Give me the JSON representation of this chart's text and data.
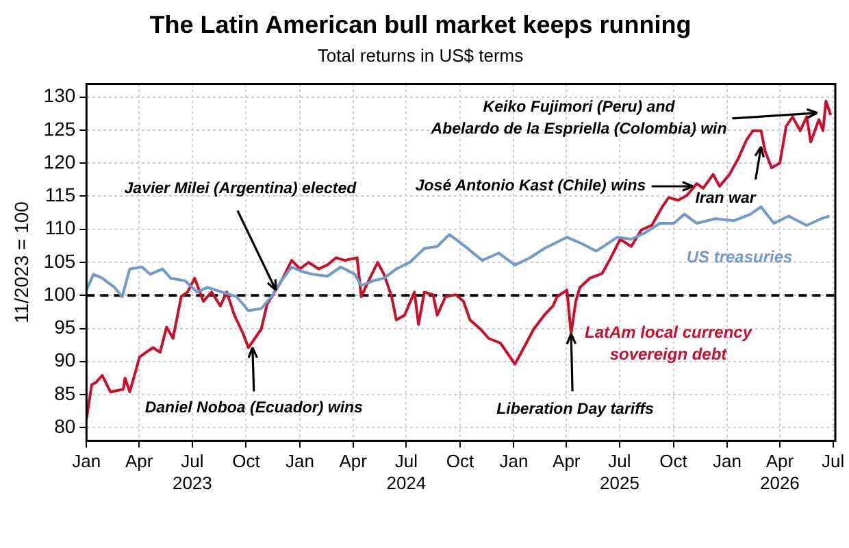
{
  "chart_data": {
    "type": "line",
    "title": "The Latin American bull market keeps running",
    "subtitle": "Total returns in US$ terms",
    "ylabel": "11/2023 = 100",
    "xlim": [
      "2023-01-01",
      "2026-07-05"
    ],
    "xticks": [
      {
        "value": "2023-01",
        "label": "Jan"
      },
      {
        "value": "2023-04",
        "label": "Apr"
      },
      {
        "value": "2023-07",
        "label": "Jul\n2023"
      },
      {
        "value": "2023-10",
        "label": "Oct"
      },
      {
        "value": "2024-01",
        "label": "Jan"
      },
      {
        "value": "2024-04",
        "label": "Apr"
      },
      {
        "value": "2024-07",
        "label": "Jul\n2024"
      },
      {
        "value": "2024-10",
        "label": "Oct"
      },
      {
        "value": "2025-01",
        "label": "Jan"
      },
      {
        "value": "2025-04",
        "label": "Apr"
      },
      {
        "value": "2025-07",
        "label": "Jul\n2025"
      },
      {
        "value": "2025-10",
        "label": "Oct"
      },
      {
        "value": "2026-01",
        "label": "Jan"
      },
      {
        "value": "2026-04",
        "label": "Apr\n2026"
      },
      {
        "value": "2026-07",
        "label": "Jul"
      }
    ],
    "ylim": [
      78,
      132
    ],
    "yticks": [
      80,
      85,
      90,
      95,
      100,
      105,
      110,
      115,
      120,
      125,
      130
    ],
    "grid": true,
    "legend": false,
    "marker": "none",
    "line_style": "solid",
    "ref_lines": [
      {
        "axis": "y",
        "value": 100,
        "color": "#000000",
        "line_style": "dashed"
      }
    ],
    "series": [
      {
        "name": "US treasuries",
        "color": "#7399c6",
        "x": [
          "2023-01-01",
          "2023-01-13",
          "2023-01-28",
          "2023-02-18",
          "2023-03-03",
          "2023-03-16",
          "2023-04-06",
          "2023-04-20",
          "2023-05-11",
          "2023-05-25",
          "2023-06-19",
          "2023-07-09",
          "2023-07-27",
          "2023-08-21",
          "2023-09-15",
          "2023-10-05",
          "2023-10-27",
          "2023-11-13",
          "2023-11-28",
          "2023-12-18",
          "2024-01-05",
          "2024-01-23",
          "2024-02-17",
          "2024-03-11",
          "2024-04-04",
          "2024-04-15",
          "2024-05-05",
          "2024-05-24",
          "2024-06-14",
          "2024-07-07",
          "2024-08-01",
          "2024-08-23",
          "2024-09-08",
          "2024-09-13",
          "2024-10-10",
          "2024-11-08",
          "2024-12-06",
          "2025-01-03",
          "2025-01-29",
          "2025-02-22",
          "2025-04-02",
          "2025-04-28",
          "2025-05-22",
          "2025-06-27",
          "2025-07-21",
          "2025-08-14",
          "2025-09-08",
          "2025-10-02",
          "2025-10-20",
          "2025-11-10",
          "2025-12-12",
          "2026-01-13",
          "2026-02-10",
          "2026-02-28",
          "2026-03-22",
          "2026-04-16",
          "2026-05-17",
          "2026-06-11",
          "2026-06-25"
        ],
        "values": [
          100.8,
          103.2,
          102.6,
          101.2,
          99.8,
          104.0,
          104.3,
          103.2,
          104.0,
          102.6,
          102.2,
          100.5,
          101.2,
          100.5,
          99.8,
          97.7,
          98.0,
          99.8,
          101.9,
          104.3,
          103.6,
          103.2,
          102.9,
          104.3,
          103.2,
          101.5,
          102.2,
          102.6,
          104.0,
          105.0,
          107.1,
          107.4,
          108.8,
          109.2,
          107.4,
          105.3,
          106.4,
          104.6,
          105.7,
          107.1,
          108.8,
          107.8,
          106.7,
          108.8,
          108.5,
          109.5,
          110.9,
          110.9,
          112.3,
          110.9,
          111.6,
          111.3,
          112.3,
          113.4,
          110.9,
          112.0,
          110.6,
          111.6,
          112.0
        ]
      },
      {
        "name": "LatAm local currency sovereign debt",
        "color": "#c8102e",
        "x": [
          "2023-01-01",
          "2023-01-10",
          "2023-01-17",
          "2023-01-28",
          "2023-02-11",
          "2023-03-05",
          "2023-03-08",
          "2023-03-16",
          "2023-04-02",
          "2023-04-13",
          "2023-04-25",
          "2023-05-07",
          "2023-05-18",
          "2023-05-29",
          "2023-06-12",
          "2023-06-23",
          "2023-07-05",
          "2023-07-20",
          "2023-08-03",
          "2023-08-18",
          "2023-08-29",
          "2023-09-11",
          "2023-09-26",
          "2023-10-05",
          "2023-10-16",
          "2023-10-27",
          "2023-11-06",
          "2023-11-21",
          "2023-12-03",
          "2023-12-18",
          "2024-01-01",
          "2024-01-16",
          "2024-02-02",
          "2024-02-17",
          "2024-03-03",
          "2024-03-18",
          "2024-04-08",
          "2024-04-15",
          "2024-04-26",
          "2024-05-13",
          "2024-05-24",
          "2024-06-06",
          "2024-06-14",
          "2024-06-28",
          "2024-07-15",
          "2024-07-22",
          "2024-08-01",
          "2024-08-16",
          "2024-08-23",
          "2024-09-06",
          "2024-09-24",
          "2024-10-07",
          "2024-10-18",
          "2024-11-05",
          "2024-11-19",
          "2024-12-09",
          "2024-12-20",
          "2025-01-03",
          "2025-01-14",
          "2025-02-04",
          "2025-02-22",
          "2025-03-09",
          "2025-03-16",
          "2025-04-02",
          "2025-04-09",
          "2025-04-17",
          "2025-04-24",
          "2025-05-11",
          "2025-06-01",
          "2025-06-16",
          "2025-07-02",
          "2025-07-21",
          "2025-08-07",
          "2025-08-25",
          "2025-09-12",
          "2025-09-23",
          "2025-10-09",
          "2025-10-24",
          "2025-11-10",
          "2025-11-21",
          "2025-12-08",
          "2025-12-19",
          "2026-01-05",
          "2026-01-20",
          "2026-02-03",
          "2026-02-14",
          "2026-02-28",
          "2026-03-07",
          "2026-03-18",
          "2026-04-01",
          "2026-04-12",
          "2026-04-23",
          "2026-05-06",
          "2026-05-17",
          "2026-05-24",
          "2026-06-07",
          "2026-06-14",
          "2026-06-19",
          "2026-06-27"
        ],
        "values": [
          81.3,
          86.5,
          86.8,
          87.9,
          85.4,
          85.8,
          87.5,
          85.4,
          90.7,
          91.4,
          92.1,
          91.4,
          95.2,
          93.5,
          99.8,
          100.5,
          102.6,
          99.1,
          100.5,
          98.4,
          100.5,
          97.0,
          94.2,
          92.1,
          93.5,
          94.9,
          98.7,
          100.8,
          102.6,
          105.3,
          104.0,
          105.0,
          104.0,
          104.6,
          105.7,
          105.3,
          105.7,
          99.8,
          101.9,
          105.0,
          103.2,
          99.8,
          96.3,
          97.0,
          100.5,
          95.6,
          100.5,
          100.1,
          97.0,
          99.8,
          100.1,
          99.1,
          96.3,
          94.9,
          93.5,
          92.8,
          91.4,
          89.6,
          91.4,
          94.9,
          97.0,
          98.4,
          99.8,
          100.8,
          94.2,
          99.1,
          101.2,
          102.6,
          103.3,
          105.7,
          108.5,
          107.4,
          109.9,
          110.6,
          113.4,
          114.8,
          114.4,
          115.1,
          116.9,
          116.2,
          118.3,
          116.5,
          118.3,
          120.7,
          123.5,
          124.9,
          124.9,
          121.8,
          119.3,
          120.0,
          125.6,
          127.0,
          124.9,
          127.0,
          123.2,
          126.6,
          124.9,
          129.4,
          127.3
        ]
      }
    ],
    "annotations": [
      {
        "text": "Javier Milei (Argentina) elected",
        "x": "2023-11-21",
        "y": 100.8
      },
      {
        "text": "Daniel Noboa (Ecuador) wins",
        "x": "2023-10-12",
        "y": 92.1
      },
      {
        "text": "Liberation Day tariffs",
        "x": "2025-04-09",
        "y": 94.2
      },
      {
        "text": "José Antonio Kast (Chile) wins",
        "x": "2025-11-03",
        "y": 116.5
      },
      {
        "text": "Keiko Fujimori (Peru) and Abelardo de la Espriella (Colombia) win",
        "x": "2026-06-04",
        "y": 127.6
      },
      {
        "text": "Iran war",
        "x": "2026-02-28",
        "y": 122.5
      }
    ]
  }
}
